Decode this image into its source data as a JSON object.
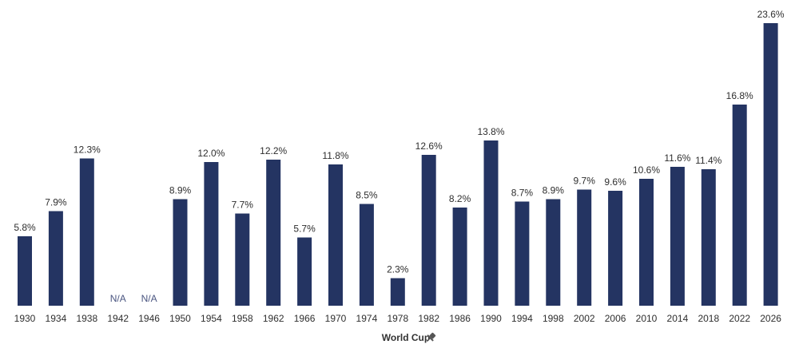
{
  "chart_data": {
    "type": "bar",
    "xlabel": "World Cup",
    "ylabel": "",
    "ylim": [
      0,
      25
    ],
    "grid": false,
    "legend": "none",
    "bar_color": "#243462",
    "xlabel_icon": "pin-icon",
    "categories": [
      "1930",
      "1934",
      "1938",
      "1942",
      "1946",
      "1950",
      "1954",
      "1958",
      "1962",
      "1966",
      "1970",
      "1974",
      "1978",
      "1982",
      "1986",
      "1990",
      "1994",
      "1998",
      "2002",
      "2006",
      "2010",
      "2014",
      "2018",
      "2022",
      "2026"
    ],
    "values": [
      5.8,
      7.9,
      12.3,
      null,
      null,
      8.9,
      12.0,
      7.7,
      12.2,
      5.7,
      11.8,
      8.5,
      2.3,
      12.6,
      8.2,
      13.8,
      8.7,
      8.9,
      9.7,
      9.6,
      10.6,
      11.6,
      11.4,
      16.8,
      23.6
    ],
    "data_labels": [
      "5.8%",
      "7.9%",
      "12.3%",
      "N/A",
      "N/A",
      "8.9%",
      "12.0%",
      "7.7%",
      "12.2%",
      "5.7%",
      "11.8%",
      "8.5%",
      "2.3%",
      "12.6%",
      "8.2%",
      "13.8%",
      "8.7%",
      "8.9%",
      "9.7%",
      "9.6%",
      "10.6%",
      "11.6%",
      "11.4%",
      "16.8%",
      "23.6%"
    ]
  }
}
